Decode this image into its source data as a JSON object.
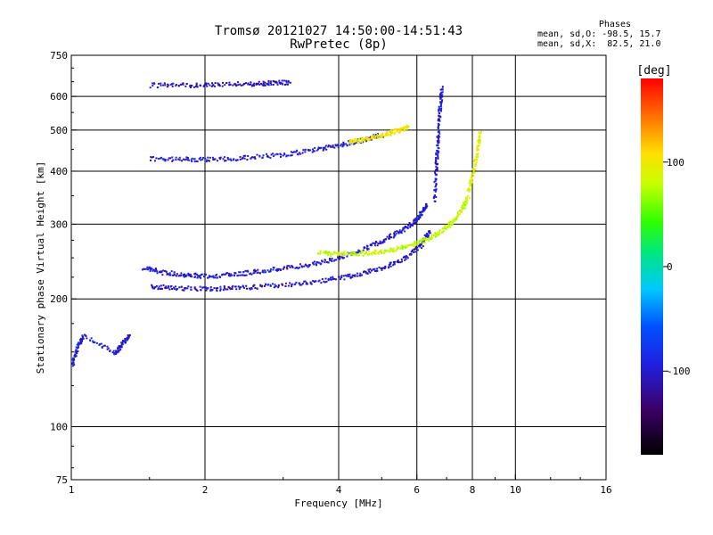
{
  "title_line1": "Tromsø 20121027 14:50:00-14:51:43",
  "title_line2": "RwPretec (8p)",
  "stats": {
    "header": "Phases",
    "line1": "mean, sd,O: -98.5, 15.7",
    "line2": "mean, sd,X:  82.5, 21.0"
  },
  "colorbar": {
    "unit_label": "[deg]",
    "ticks": [
      {
        "value": 100,
        "label": "100"
      },
      {
        "value": 0,
        "label": "0"
      },
      {
        "value": -100,
        "label": "-100"
      }
    ],
    "range": [
      -180,
      180
    ]
  },
  "chart_data": {
    "type": "scatter",
    "xlabel": "Frequency [MHz]",
    "ylabel": "Stationary phase Virtual Height [km]",
    "xscale": "log",
    "yscale": "log",
    "xlim": [
      1,
      16
    ],
    "ylim": [
      75,
      750
    ],
    "xticks": [
      1,
      2,
      4,
      6,
      8,
      10,
      16
    ],
    "xtick_labels": [
      "1",
      "2",
      "4",
      "6",
      "8",
      "10",
      "16"
    ],
    "yticks": [
      75,
      100,
      200,
      300,
      400,
      500,
      600,
      750
    ],
    "ytick_labels": [
      "75",
      "100",
      "200",
      "300",
      "400",
      "500",
      "600",
      "750"
    ],
    "grid": true,
    "series": [
      {
        "kind": "O-mode F-layer trace",
        "phase": -100,
        "x": [
          1.45,
          1.6,
          1.8,
          2.0,
          2.3,
          2.6,
          3.0,
          3.5,
          4.0,
          4.5,
          5.0,
          5.5,
          5.9,
          6.1,
          6.3
        ],
        "y": [
          238,
          232,
          229,
          227,
          229,
          233,
          237,
          243,
          251,
          262,
          275,
          290,
          305,
          318,
          335
        ]
      },
      {
        "kind": "O-mode F-layer trace (lower)",
        "phase": -105,
        "x": [
          1.5,
          1.7,
          2.0,
          2.3,
          2.7,
          3.2,
          3.8,
          4.4,
          5.0,
          5.6,
          6.1,
          6.4
        ],
        "y": [
          215,
          213,
          212,
          213,
          215,
          218,
          223,
          229,
          238,
          250,
          268,
          292
        ]
      },
      {
        "kind": "X-mode F-layer trace",
        "phase": 80,
        "x": [
          3.6,
          4.0,
          4.5,
          5.0,
          5.5,
          6.0,
          6.5,
          7.0,
          7.3,
          7.6,
          7.8
        ],
        "y": [
          258,
          256,
          257,
          260,
          265,
          272,
          282,
          297,
          310,
          330,
          350
        ]
      },
      {
        "kind": "O-mode critical cusp",
        "phase": -100,
        "x": [
          6.55,
          6.6,
          6.65,
          6.7,
          6.75,
          6.8
        ],
        "y": [
          340,
          400,
          450,
          520,
          580,
          630
        ]
      },
      {
        "kind": "X-mode critical cusp",
        "phase": 90,
        "x": [
          7.8,
          8.0,
          8.2,
          8.3
        ],
        "y": [
          360,
          400,
          450,
          500
        ]
      },
      {
        "kind": "Multihop O-mode trace",
        "phase": -100,
        "x": [
          1.5,
          1.8,
          2.1,
          2.5,
          3.0,
          3.5,
          4.0,
          4.5,
          5.0
        ],
        "y": [
          430,
          428,
          429,
          432,
          440,
          450,
          462,
          475,
          490
        ]
      },
      {
        "kind": "Multihop X-mode trace",
        "phase": 100,
        "x": [
          4.2,
          4.6,
          5.0,
          5.4,
          5.7
        ],
        "y": [
          470,
          478,
          488,
          500,
          510
        ]
      },
      {
        "kind": "High echo band",
        "phase": -110,
        "x": [
          1.5,
          1.8,
          2.1,
          2.5,
          2.8,
          3.1
        ],
        "y": [
          640,
          640,
          642,
          645,
          648,
          650
        ]
      },
      {
        "kind": "E-layer echoes",
        "phase": -100,
        "x": [
          1.0,
          1.03,
          1.06,
          1.25,
          1.3,
          1.35
        ],
        "y": [
          140,
          155,
          165,
          150,
          158,
          165
        ]
      }
    ]
  }
}
